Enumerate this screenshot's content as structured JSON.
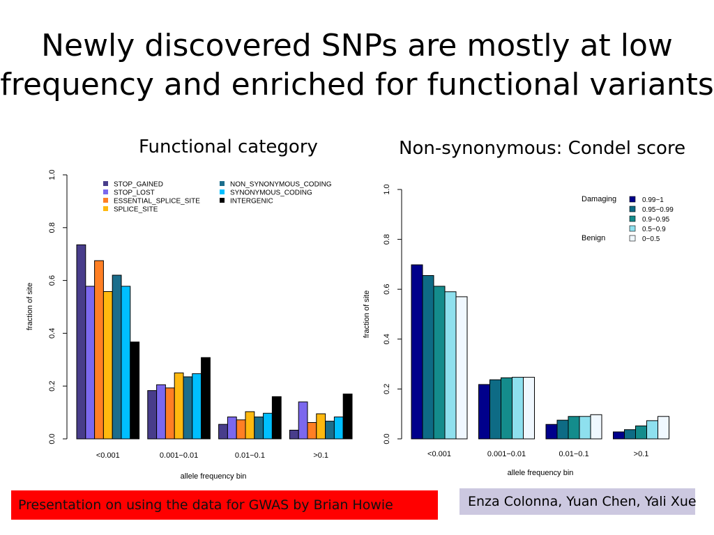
{
  "slide": {
    "title_line1": "Newly discovered SNPs are mostly at low",
    "title_line2": "frequency and enriched for functional variants",
    "heading_left": "Functional category",
    "heading_right": "Non-synonymous: Condel score"
  },
  "footer": {
    "left": "Presentation on using the data for GWAS by Brian Howie",
    "right": "Enza Colonna, Yuan Chen, Yali Xue"
  },
  "chart_data": [
    {
      "type": "bar",
      "xlabel": "allele frequency bin",
      "ylabel": "fraction of site",
      "ylim": [
        0,
        1
      ],
      "yticks": [
        "0.0",
        "0.2",
        "0.4",
        "0.6",
        "0.8",
        "1.0"
      ],
      "categories": [
        "<0.001",
        "0.001−0.01",
        "0.01−0.1",
        ">0.1"
      ],
      "legend_position": "top",
      "series": [
        {
          "name": "STOP_GAINED",
          "color": "#483d8b",
          "values": [
            0.735,
            0.183,
            0.055,
            0.033
          ]
        },
        {
          "name": "STOP_LOST",
          "color": "#7b68ee",
          "values": [
            0.578,
            0.205,
            0.083,
            0.14
          ]
        },
        {
          "name": "ESSENTIAL_SPLICE_SITE",
          "color": "#ff7f24",
          "values": [
            0.675,
            0.193,
            0.072,
            0.062
          ]
        },
        {
          "name": "SPLICE_SITE",
          "color": "#ffb90f",
          "values": [
            0.558,
            0.25,
            0.103,
            0.095
          ]
        },
        {
          "name": "NON_SYNONYMOUS_CODING",
          "color": "#1c6e8c",
          "values": [
            0.62,
            0.235,
            0.083,
            0.067
          ]
        },
        {
          "name": "SYNONYMOUS_CODING",
          "color": "#00bfff",
          "values": [
            0.578,
            0.247,
            0.097,
            0.083
          ]
        },
        {
          "name": "INTERGENIC",
          "color": "#000000",
          "values": [
            0.367,
            0.308,
            0.16,
            0.17
          ]
        }
      ]
    },
    {
      "type": "bar",
      "xlabel": "allele frequency bin",
      "ylabel": "fraction of site",
      "ylim": [
        0,
        1
      ],
      "yticks": [
        "0.0",
        "0.2",
        "0.4",
        "0.6",
        "0.8",
        "1.0"
      ],
      "categories": [
        "<0.001",
        "0.001−0.01",
        "0.01−0.1",
        ">0.1"
      ],
      "legend_position": "top-right",
      "legend_annotations": [
        "Damaging",
        "Benign"
      ],
      "series": [
        {
          "name": "0.99−1",
          "color": "#00008b",
          "values": [
            0.698,
            0.218,
            0.058,
            0.028
          ]
        },
        {
          "name": "0.95−0.99",
          "color": "#0e6b85",
          "values": [
            0.655,
            0.237,
            0.075,
            0.037
          ]
        },
        {
          "name": "0.9−0.95",
          "color": "#148c8c",
          "values": [
            0.612,
            0.245,
            0.09,
            0.052
          ]
        },
        {
          "name": "0.5−0.9",
          "color": "#8ee0ee",
          "values": [
            0.59,
            0.247,
            0.09,
            0.073
          ]
        },
        {
          "name": "0−0.5",
          "color": "#f0f8ff",
          "values": [
            0.57,
            0.247,
            0.097,
            0.09
          ]
        }
      ]
    }
  ]
}
